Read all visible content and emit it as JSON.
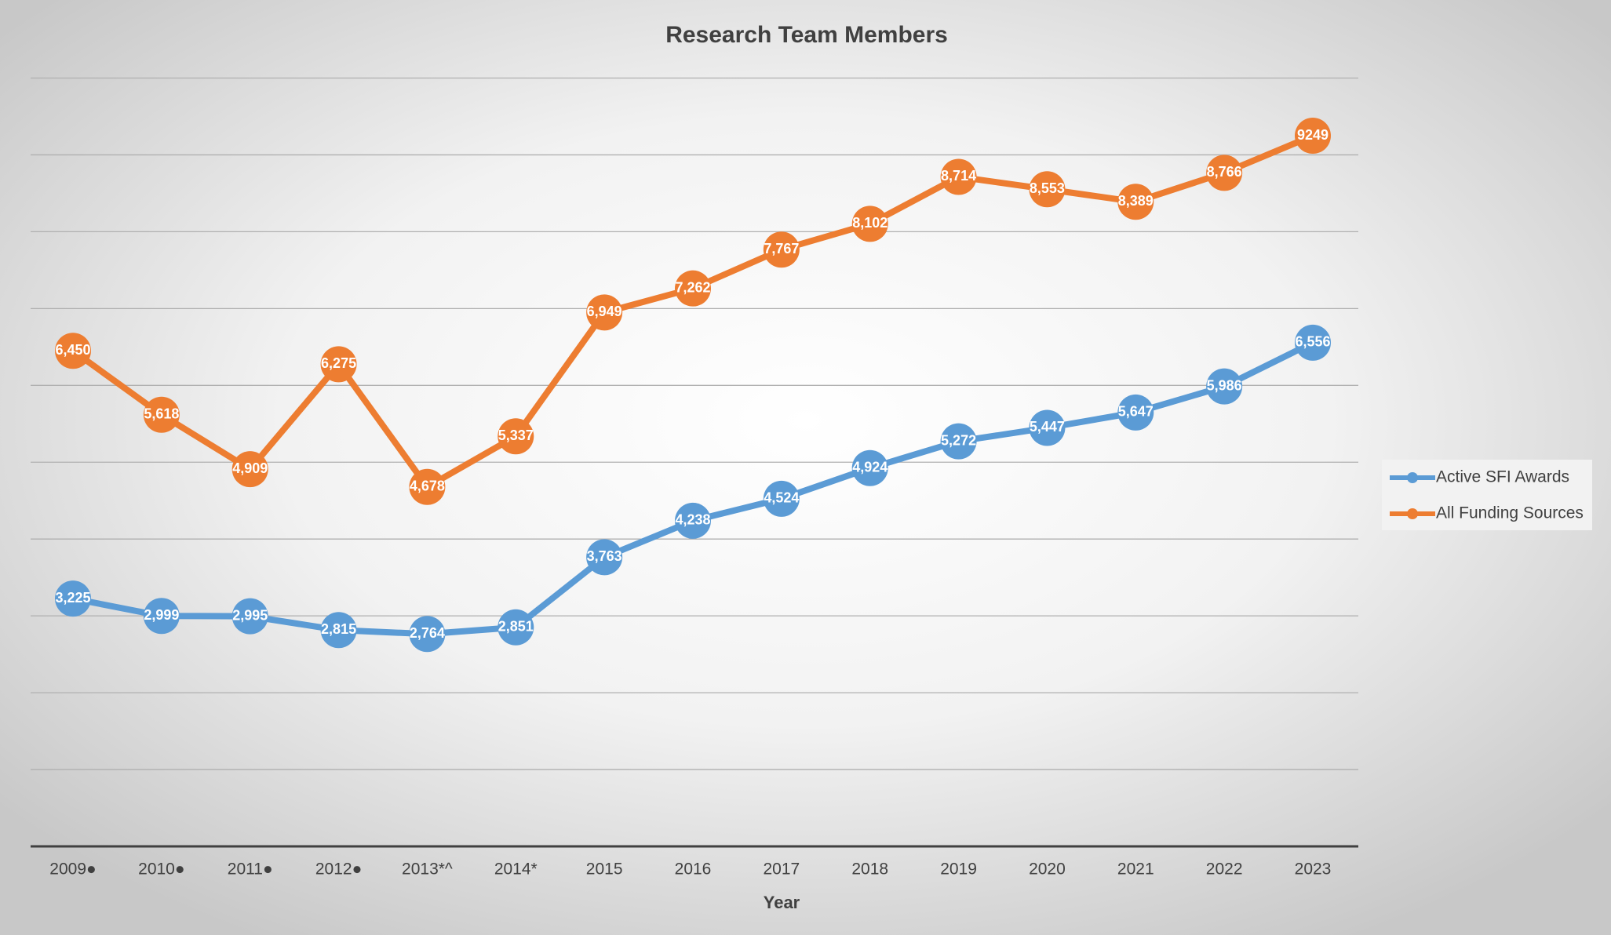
{
  "chart_data": {
    "type": "line",
    "title": "Research Team Members",
    "xlabel": "Year",
    "categories": [
      "2009●",
      "2010●",
      "2011●",
      "2012●",
      "2013*^",
      "2014*",
      "2015",
      "2016",
      "2017",
      "2018",
      "2019",
      "2020",
      "2021",
      "2022",
      "2023"
    ],
    "series": [
      {
        "name": "Active SFI Awards",
        "color": "#5b9bd5",
        "values": [
          3225,
          2999,
          2995,
          2815,
          2764,
          2851,
          3763,
          4238,
          4524,
          4924,
          5272,
          5447,
          5647,
          5986,
          6556
        ],
        "value_labels": [
          "3,225",
          "2,999",
          "2,995",
          "2,815",
          "2,764",
          "2,851",
          "3,763",
          "4,238",
          "4,524",
          "4,924",
          "5,272",
          "5,447",
          "5,647",
          "5,986",
          "6,556"
        ]
      },
      {
        "name": "All Funding Sources",
        "color": "#ed7d31",
        "values": [
          6450,
          5618,
          4909,
          6275,
          4678,
          5337,
          6949,
          7262,
          7767,
          8102,
          8714,
          8553,
          8389,
          8766,
          9249
        ],
        "value_labels": [
          "6,450",
          "5,618",
          "4,909",
          "6,275",
          "4,678",
          "5,337",
          "6,949",
          "7,262",
          "7,767",
          "8,102",
          "8,714",
          "8,553",
          "8,389",
          "8,766",
          "9249"
        ]
      }
    ],
    "ylim": [
      0,
      10000
    ],
    "yticks": [
      0,
      1000,
      2000,
      3000,
      4000,
      5000,
      6000,
      7000,
      8000,
      9000,
      10000
    ],
    "grid": true,
    "legend": "right"
  }
}
